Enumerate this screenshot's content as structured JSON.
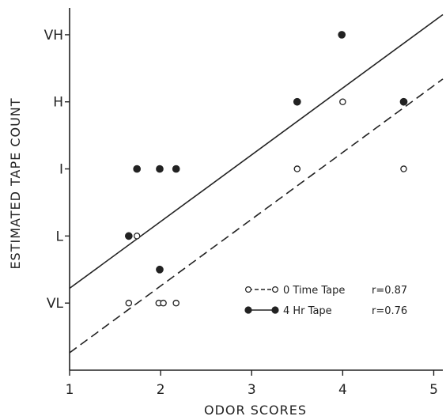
{
  "chart_data": {
    "type": "scatter",
    "xlabel": "ODOR SCORES",
    "ylabel": "ESTIMATED TAPE COUNT",
    "xlim": [
      1,
      5.1
    ],
    "ylim": [
      0,
      5.4
    ],
    "x_ticks": [
      1,
      2,
      3,
      4,
      5
    ],
    "x_tick_labels": [
      "1",
      "2",
      "3",
      "4",
      "5"
    ],
    "y_ticks": [
      1,
      2,
      3,
      4,
      5
    ],
    "y_tick_labels": [
      "VL",
      "L",
      "I",
      "H",
      "VH"
    ],
    "grid": false,
    "legend_position": "bottom-right",
    "series": [
      {
        "name": "0 Time Tape",
        "marker": "open-circle",
        "line_style": "dashed",
        "r_label": "r=0.87",
        "points": [
          {
            "x": 1.65,
            "y": 1
          },
          {
            "x": 1.74,
            "y": 2
          },
          {
            "x": 1.98,
            "y": 1
          },
          {
            "x": 2.03,
            "y": 1
          },
          {
            "x": 2.17,
            "y": 1
          },
          {
            "x": 3.5,
            "y": 3
          },
          {
            "x": 4.0,
            "y": 4
          },
          {
            "x": 4.67,
            "y": 3
          }
        ],
        "fit_line": [
          {
            "x": 1,
            "y": 0.26
          },
          {
            "x": 5.1,
            "y": 4.34
          }
        ]
      },
      {
        "name": "4 Hr Tape",
        "marker": "filled-circle",
        "line_style": "solid",
        "r_label": "r=0.76",
        "points": [
          {
            "x": 1.65,
            "y": 2
          },
          {
            "x": 1.74,
            "y": 3
          },
          {
            "x": 1.99,
            "y": 3
          },
          {
            "x": 1.99,
            "y": 1.5
          },
          {
            "x": 2.17,
            "y": 3
          },
          {
            "x": 3.5,
            "y": 4
          },
          {
            "x": 3.99,
            "y": 5
          },
          {
            "x": 4.67,
            "y": 4
          }
        ],
        "fit_line": [
          {
            "x": 1,
            "y": 1.22
          },
          {
            "x": 5.1,
            "y": 5.3
          }
        ]
      }
    ]
  },
  "colors": {
    "ink": "#222222",
    "background": "#ffffff"
  }
}
